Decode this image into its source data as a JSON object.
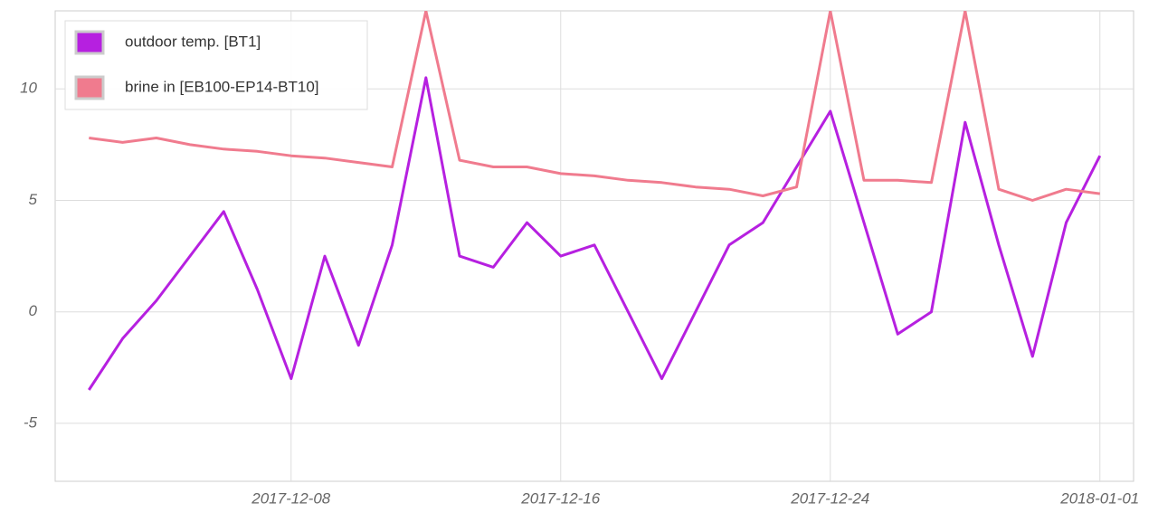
{
  "chart_data": {
    "type": "line",
    "x": [
      "2017-12-02",
      "2017-12-03",
      "2017-12-04",
      "2017-12-05",
      "2017-12-06",
      "2017-12-07",
      "2017-12-08",
      "2017-12-09",
      "2017-12-10",
      "2017-12-11",
      "2017-12-12",
      "2017-12-13",
      "2017-12-14",
      "2017-12-15",
      "2017-12-16",
      "2017-12-17",
      "2017-12-18",
      "2017-12-19",
      "2017-12-20",
      "2017-12-21",
      "2017-12-22",
      "2017-12-23",
      "2017-12-24",
      "2017-12-25",
      "2017-12-26",
      "2017-12-27",
      "2017-12-28",
      "2017-12-29",
      "2017-12-30",
      "2017-12-31",
      "2018-01-01"
    ],
    "series": [
      {
        "name": "outdoor temp. [BT1]",
        "color": "#b620e0",
        "values": [
          -3.5,
          -1.2,
          0.5,
          2.5,
          4.5,
          1.0,
          -3.0,
          2.5,
          -1.5,
          3.0,
          10.5,
          2.5,
          2.0,
          4.0,
          2.5,
          3.0,
          0.0,
          -3.0,
          0.0,
          3.0,
          4.0,
          6.5,
          9.0,
          4.0,
          -1.0,
          0.0,
          8.5,
          3.0,
          -2.0,
          4.0,
          7.0
        ]
      },
      {
        "name": "brine in [EB100-EP14-BT10]",
        "color": "#f07b8e",
        "values": [
          7.8,
          7.6,
          7.8,
          7.5,
          7.3,
          7.2,
          7.0,
          6.9,
          6.7,
          6.5,
          13.5,
          6.8,
          6.5,
          6.5,
          6.2,
          6.1,
          5.9,
          5.8,
          5.6,
          5.5,
          5.2,
          5.6,
          13.5,
          5.9,
          5.9,
          5.8,
          13.5,
          5.5,
          5.0,
          5.5,
          5.3
        ]
      }
    ],
    "xlim": [
      "2017-12-01",
      "2018-01-02"
    ],
    "xticks": [
      "2017-12-08",
      "2017-12-16",
      "2017-12-24",
      "2018-01-01"
    ],
    "ylim": [
      -7.6,
      13.5
    ],
    "yticks": [
      -5,
      0,
      5,
      10
    ],
    "grid": true,
    "legend": "top-left"
  }
}
